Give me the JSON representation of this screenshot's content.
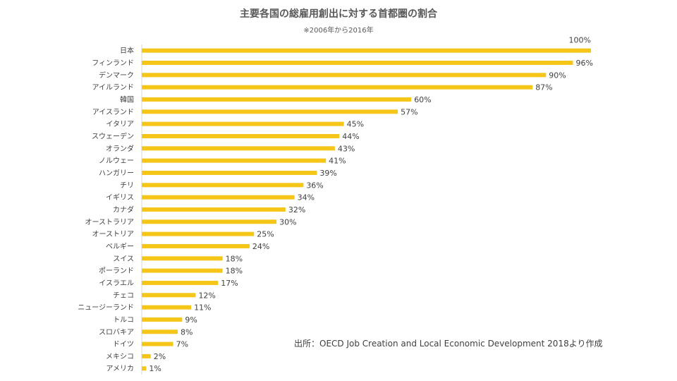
{
  "chart_data": {
    "type": "bar",
    "orientation": "horizontal",
    "title": "主要各国の総雇用創出に対する首都圏の割合",
    "subtitle": "※2006年から2016年",
    "source": "出所：OECD Job Creation and Local Economic Development 2018より作成",
    "xlabel": "",
    "ylabel": "",
    "xlim": [
      0,
      100
    ],
    "grid": false,
    "legend": "none",
    "value_suffix": "%",
    "bar_color": "#F5C518",
    "categories": [
      "日本",
      "フィンランド",
      "デンマーク",
      "アイルランド",
      "韓国",
      "アイスランド",
      "イタリア",
      "スウェーデン",
      "オランダ",
      "ノルウェー",
      "ハンガリー",
      "チリ",
      "イギリス",
      "カナダ",
      "オーストラリア",
      "オーストリア",
      "ベルギー",
      "スイス",
      "ポーランド",
      "イスラエル",
      "チェコ",
      "ニュージーランド",
      "トルコ",
      "スロバキア",
      "ドイツ",
      "メキシコ",
      "アメリカ"
    ],
    "values": [
      100,
      96,
      90,
      87,
      60,
      57,
      45,
      44,
      43,
      41,
      39,
      36,
      34,
      32,
      30,
      25,
      24,
      18,
      18,
      17,
      12,
      11,
      9,
      8,
      7,
      2,
      1
    ]
  }
}
